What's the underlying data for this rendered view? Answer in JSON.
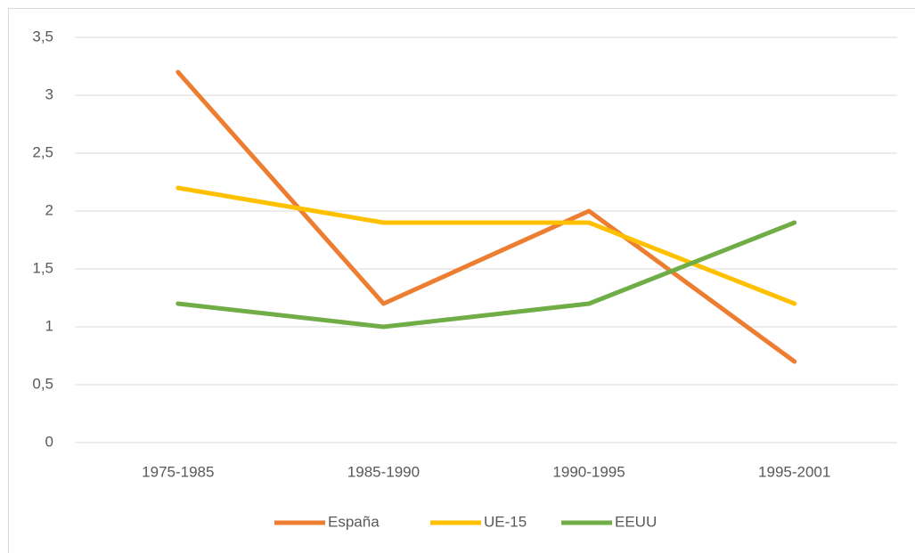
{
  "chart_data": {
    "type": "line",
    "categories": [
      "1975-1985",
      "1985-1990",
      "1990-1995",
      "1995-2001"
    ],
    "series": [
      {
        "name": "España",
        "color": "#ED7D31",
        "values": [
          3.2,
          1.2,
          2.0,
          0.7
        ]
      },
      {
        "name": "UE-15",
        "color": "#FFC000",
        "values": [
          2.2,
          1.9,
          1.9,
          1.2
        ]
      },
      {
        "name": "EEUU",
        "color": "#70AD47",
        "values": [
          1.2,
          1.0,
          1.2,
          1.9
        ]
      }
    ],
    "ylim": [
      0,
      3.5
    ],
    "yticks": [
      0,
      {
        "value": 0.5,
        "label": "0,5"
      },
      1,
      {
        "value": 1.5,
        "label": "1,5"
      },
      2,
      {
        "value": 2.5,
        "label": "2,5"
      },
      3,
      {
        "value": 3.5,
        "label": "3,5"
      }
    ],
    "grid": true,
    "legend": "bottom"
  }
}
